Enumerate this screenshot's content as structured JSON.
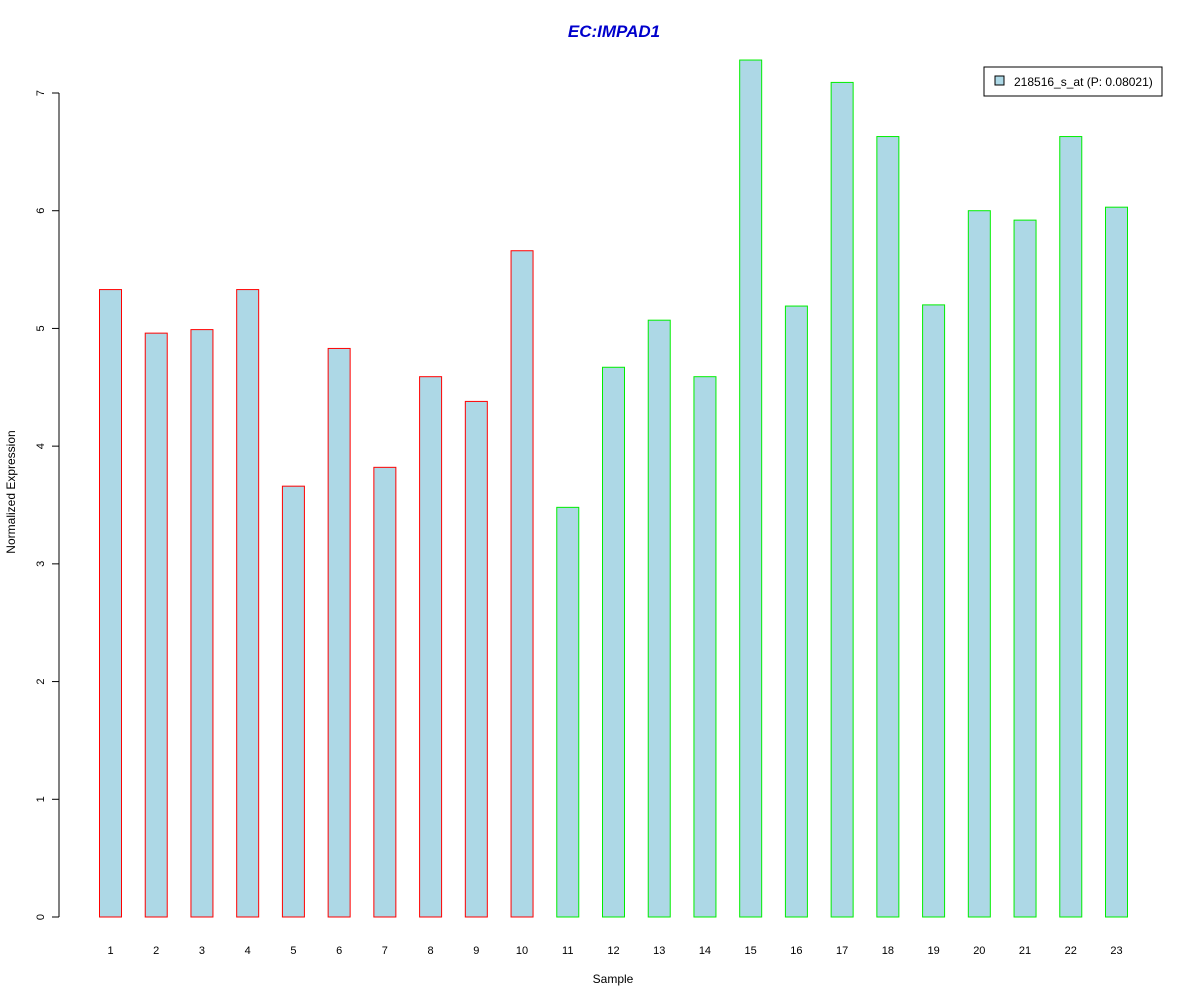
{
  "chart_data": {
    "type": "bar",
    "title": "EC:IMPAD1",
    "xlabel": "Sample",
    "ylabel": "Normalized Expression",
    "ylim": [
      0,
      7.3
    ],
    "yticks": [
      0,
      1,
      2,
      3,
      4,
      5,
      6,
      7
    ],
    "categories": [
      "1",
      "2",
      "3",
      "4",
      "5",
      "6",
      "7",
      "8",
      "9",
      "10",
      "11",
      "12",
      "13",
      "14",
      "15",
      "16",
      "17",
      "18",
      "19",
      "20",
      "21",
      "22",
      "23"
    ],
    "values": [
      5.33,
      4.96,
      4.99,
      5.33,
      3.66,
      4.83,
      3.82,
      4.59,
      4.38,
      5.66,
      3.48,
      4.67,
      5.07,
      4.59,
      7.28,
      5.19,
      7.09,
      6.63,
      5.2,
      6.0,
      5.92,
      6.63,
      6.03
    ],
    "groups": [
      "red",
      "red",
      "red",
      "red",
      "red",
      "red",
      "red",
      "red",
      "red",
      "red",
      "green",
      "green",
      "green",
      "green",
      "green",
      "green",
      "green",
      "green",
      "green",
      "green",
      "green",
      "green",
      "green"
    ],
    "legend": {
      "position": "top-right",
      "entries": [
        {
          "label": "218516_s_at (P: 0.08021)",
          "color": "#add8e6"
        }
      ]
    },
    "grid": false
  },
  "colors": {
    "title": "#0000cc",
    "bar_fill": "#add8e6",
    "bar_border_red": "#ff0000",
    "bar_border_green": "#00ee00",
    "axis": "#000000"
  }
}
